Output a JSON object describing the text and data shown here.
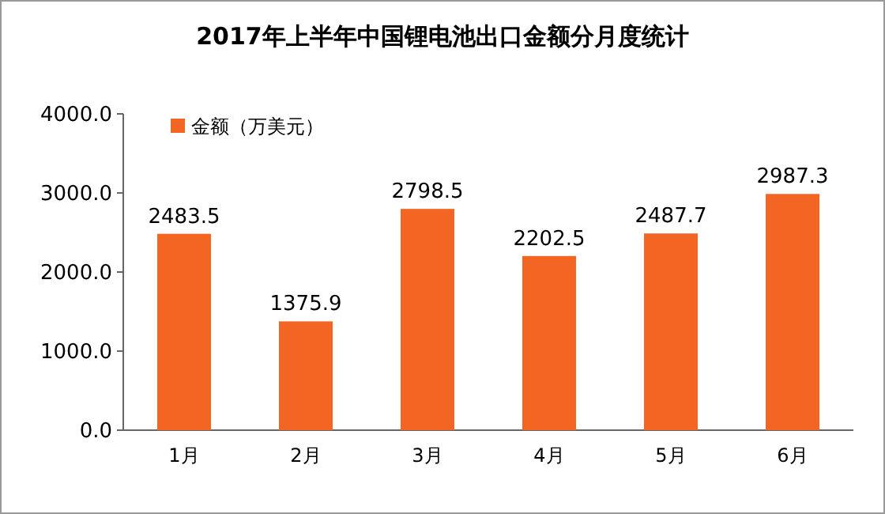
{
  "chart_data": {
    "type": "bar",
    "title": "2017年上半年中国锂电池出口金额分月度统计",
    "categories": [
      "1月",
      "2月",
      "3月",
      "4月",
      "5月",
      "6月"
    ],
    "series": [
      {
        "name": "金额（万美元）",
        "color": "#f26522",
        "values": [
          2483.5,
          1375.9,
          2798.5,
          2202.5,
          2487.7,
          2987.3
        ]
      }
    ],
    "ylim": [
      0,
      4000
    ],
    "yticks": [
      {
        "value": 0,
        "label": "0.0"
      },
      {
        "value": 1000,
        "label": "1000.0"
      },
      {
        "value": 2000,
        "label": "2000.0"
      },
      {
        "value": 3000,
        "label": "3000.0"
      },
      {
        "value": 4000,
        "label": "4000.0"
      }
    ],
    "data_labels": true,
    "legend": "top left",
    "grid": false
  }
}
